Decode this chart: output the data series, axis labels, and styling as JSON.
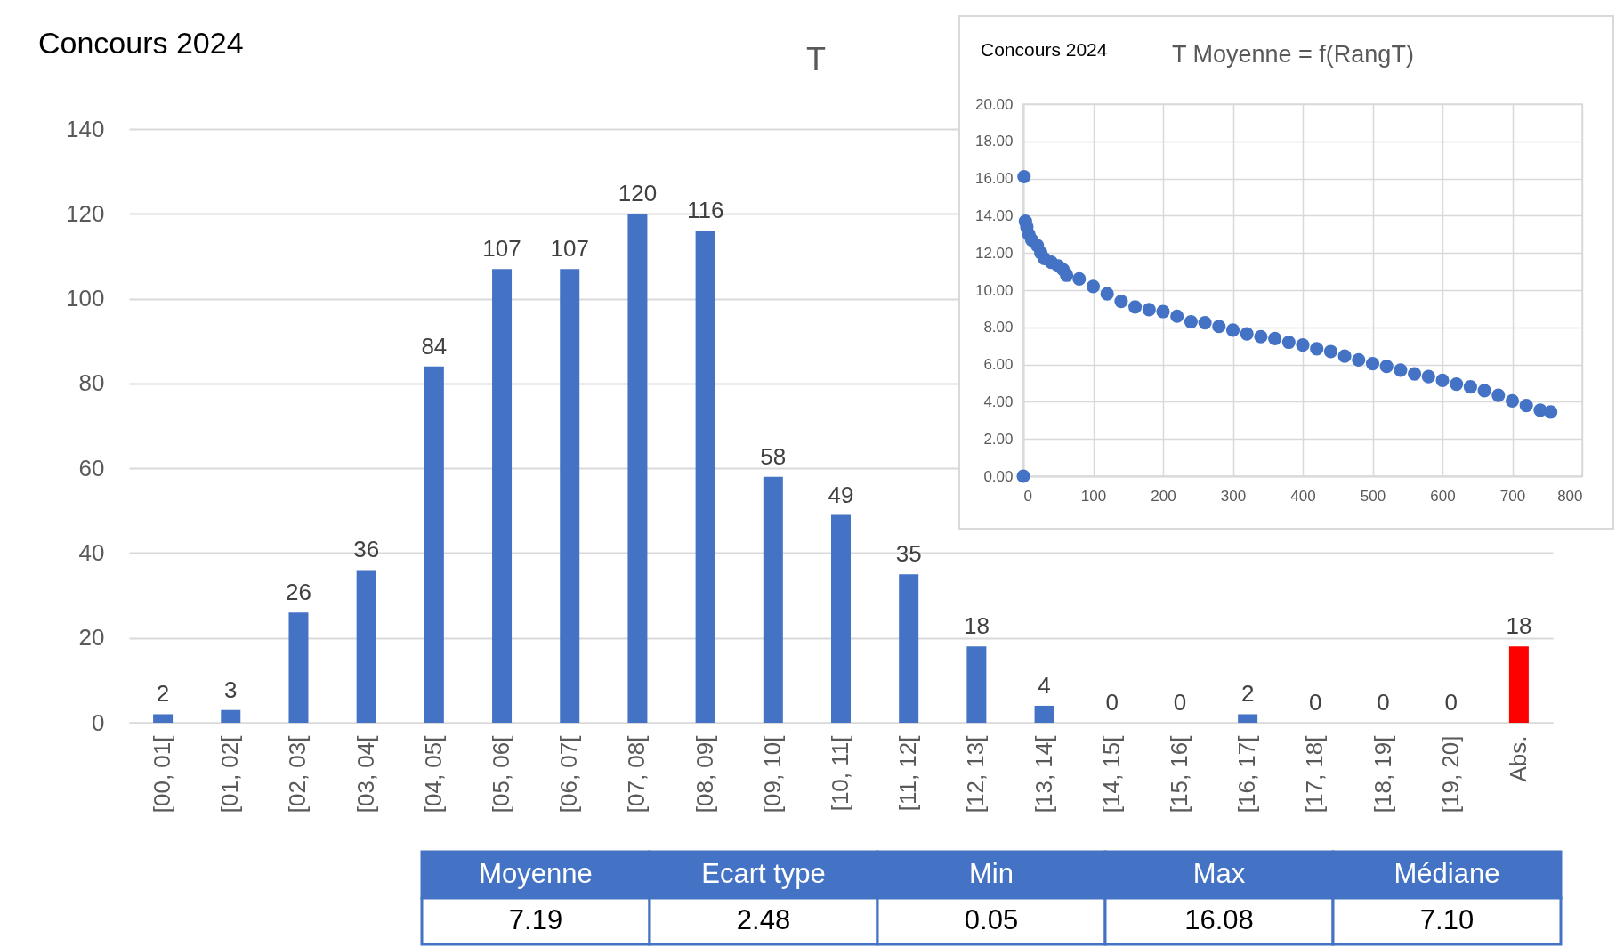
{
  "chart_data": [
    {
      "type": "bar",
      "title": "Concours 2024",
      "annotations": [
        "T"
      ],
      "categories": [
        "[00, 01[",
        "[01, 02[",
        "[02, 03[",
        "[03, 04[",
        "[04, 05[",
        "[05, 06[",
        "[06, 07[",
        "[07, 08[",
        "[08, 09[",
        "[09, 10[",
        "[10, 11[",
        "[11, 12[",
        "[12, 13[",
        "[13, 14[",
        "[14, 15[",
        "[15, 16[",
        "[16, 17[",
        "[17, 18[",
        "[18, 19[",
        "[19, 20]",
        "Abs."
      ],
      "values": [
        2,
        3,
        26,
        36,
        84,
        107,
        107,
        120,
        116,
        58,
        49,
        35,
        18,
        4,
        0,
        0,
        2,
        0,
        0,
        0,
        18
      ],
      "colors": [
        "#4472c4",
        "#4472c4",
        "#4472c4",
        "#4472c4",
        "#4472c4",
        "#4472c4",
        "#4472c4",
        "#4472c4",
        "#4472c4",
        "#4472c4",
        "#4472c4",
        "#4472c4",
        "#4472c4",
        "#4472c4",
        "#4472c4",
        "#4472c4",
        "#4472c4",
        "#4472c4",
        "#4472c4",
        "#4472c4",
        "#ff0000"
      ],
      "ylim": [
        0,
        140
      ],
      "yticks": [
        0,
        20,
        40,
        60,
        80,
        100,
        120,
        140
      ],
      "grid": "y",
      "data_labels": true
    },
    {
      "type": "scatter",
      "title": "Concours 2024",
      "subtitle": "T Moyenne = f(RangT)",
      "marker": "circle",
      "grid": true,
      "xlim": [
        0,
        800
      ],
      "xticks": [
        0,
        100,
        200,
        300,
        400,
        500,
        600,
        700,
        800
      ],
      "ylim": [
        0,
        20
      ],
      "yticks": [
        {
          "value": 0,
          "label": "0.00"
        },
        {
          "value": 2,
          "label": "2.00"
        },
        {
          "value": 4,
          "label": "4.00"
        },
        {
          "value": 6,
          "label": "6.00"
        },
        {
          "value": 8,
          "label": "8.00"
        },
        {
          "value": 10,
          "label": "10.00"
        },
        {
          "value": 12,
          "label": "12.00"
        },
        {
          "value": 14,
          "label": "14.00"
        },
        {
          "value": 16,
          "label": "16.00"
        },
        {
          "value": 18,
          "label": "18.00"
        },
        {
          "value": 20,
          "label": "20.00"
        }
      ],
      "series": [
        {
          "color": "#4472c4",
          "x": [
            0,
            1,
            3,
            5,
            8,
            12,
            20,
            25,
            30,
            40,
            50,
            57,
            62,
            80,
            100,
            120,
            140,
            160,
            180,
            200,
            220,
            240,
            260,
            280,
            300,
            320,
            340,
            360,
            380,
            400,
            420,
            440,
            460,
            480,
            500,
            520,
            540,
            560,
            580,
            600,
            620,
            640,
            660,
            680,
            700,
            720,
            740,
            755
          ],
          "values": [
            0,
            16.1,
            13.7,
            13.4,
            13.0,
            12.7,
            12.4,
            12.0,
            11.7,
            11.5,
            11.3,
            11.1,
            10.8,
            10.6,
            10.2,
            9.8,
            9.4,
            9.1,
            8.95,
            8.85,
            8.6,
            8.3,
            8.25,
            8.05,
            7.85,
            7.65,
            7.5,
            7.4,
            7.2,
            7.05,
            6.85,
            6.7,
            6.45,
            6.25,
            6.05,
            5.9,
            5.7,
            5.5,
            5.35,
            5.15,
            4.95,
            4.8,
            4.6,
            4.35,
            4.05,
            3.8,
            3.55,
            3.45
          ]
        }
      ]
    },
    {
      "type": "other",
      "categories": [
        "Moyenne",
        "Ecart type",
        "Min",
        "Max",
        "Médiane"
      ],
      "values": [
        7.19,
        2.48,
        0.05,
        16.08,
        7.1
      ],
      "value_labels": [
        "7.19",
        "2.48",
        "0.05",
        "16.08",
        "7.10"
      ]
    }
  ]
}
